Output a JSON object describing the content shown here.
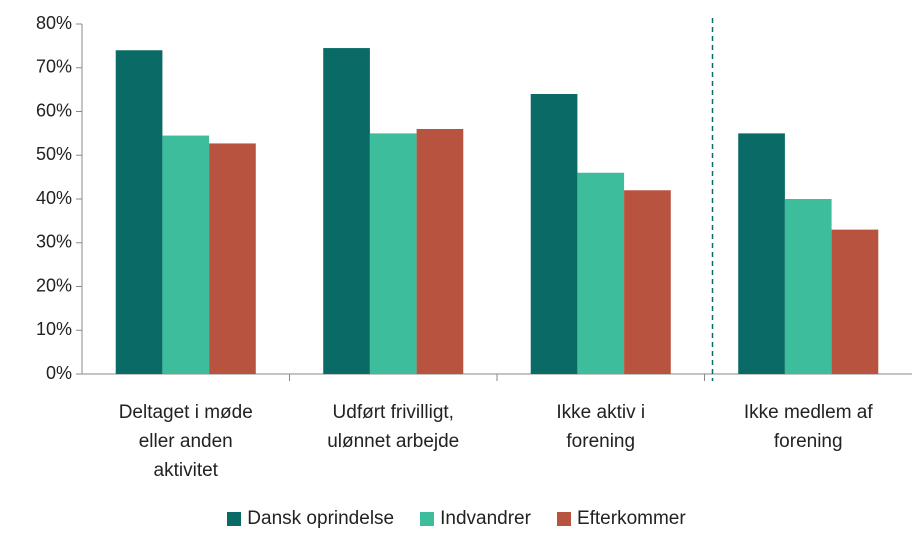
{
  "chart_data": {
    "type": "bar",
    "categories": [
      "Deltaget i møde\neller anden\naktivitet",
      "Udført frivilligt,\nulønnet arbejde",
      "Ikke aktiv i\nforening",
      "Ikke medlem af\nforening"
    ],
    "series": [
      {
        "name": "Dansk oprindelse",
        "color": "#0a6b66",
        "values": [
          74,
          74.5,
          64,
          55
        ]
      },
      {
        "name": "Indvandrer",
        "color": "#3dbd9c",
        "values": [
          54.5,
          55,
          46,
          40
        ]
      },
      {
        "name": "Efterkommer",
        "color": "#b85340",
        "values": [
          52.7,
          56,
          42,
          33
        ]
      }
    ],
    "ylim": [
      0,
      80
    ],
    "yticks": [
      {
        "value": 0,
        "label": "0%"
      },
      {
        "value": 10,
        "label": "10%"
      },
      {
        "value": 20,
        "label": "20%"
      },
      {
        "value": 30,
        "label": "30%"
      },
      {
        "value": 40,
        "label": "40%"
      },
      {
        "value": 50,
        "label": "50%"
      },
      {
        "value": 60,
        "label": "60%"
      },
      {
        "value": 70,
        "label": "70%"
      },
      {
        "value": 80,
        "label": "80%"
      }
    ],
    "legend": "bottom"
  }
}
